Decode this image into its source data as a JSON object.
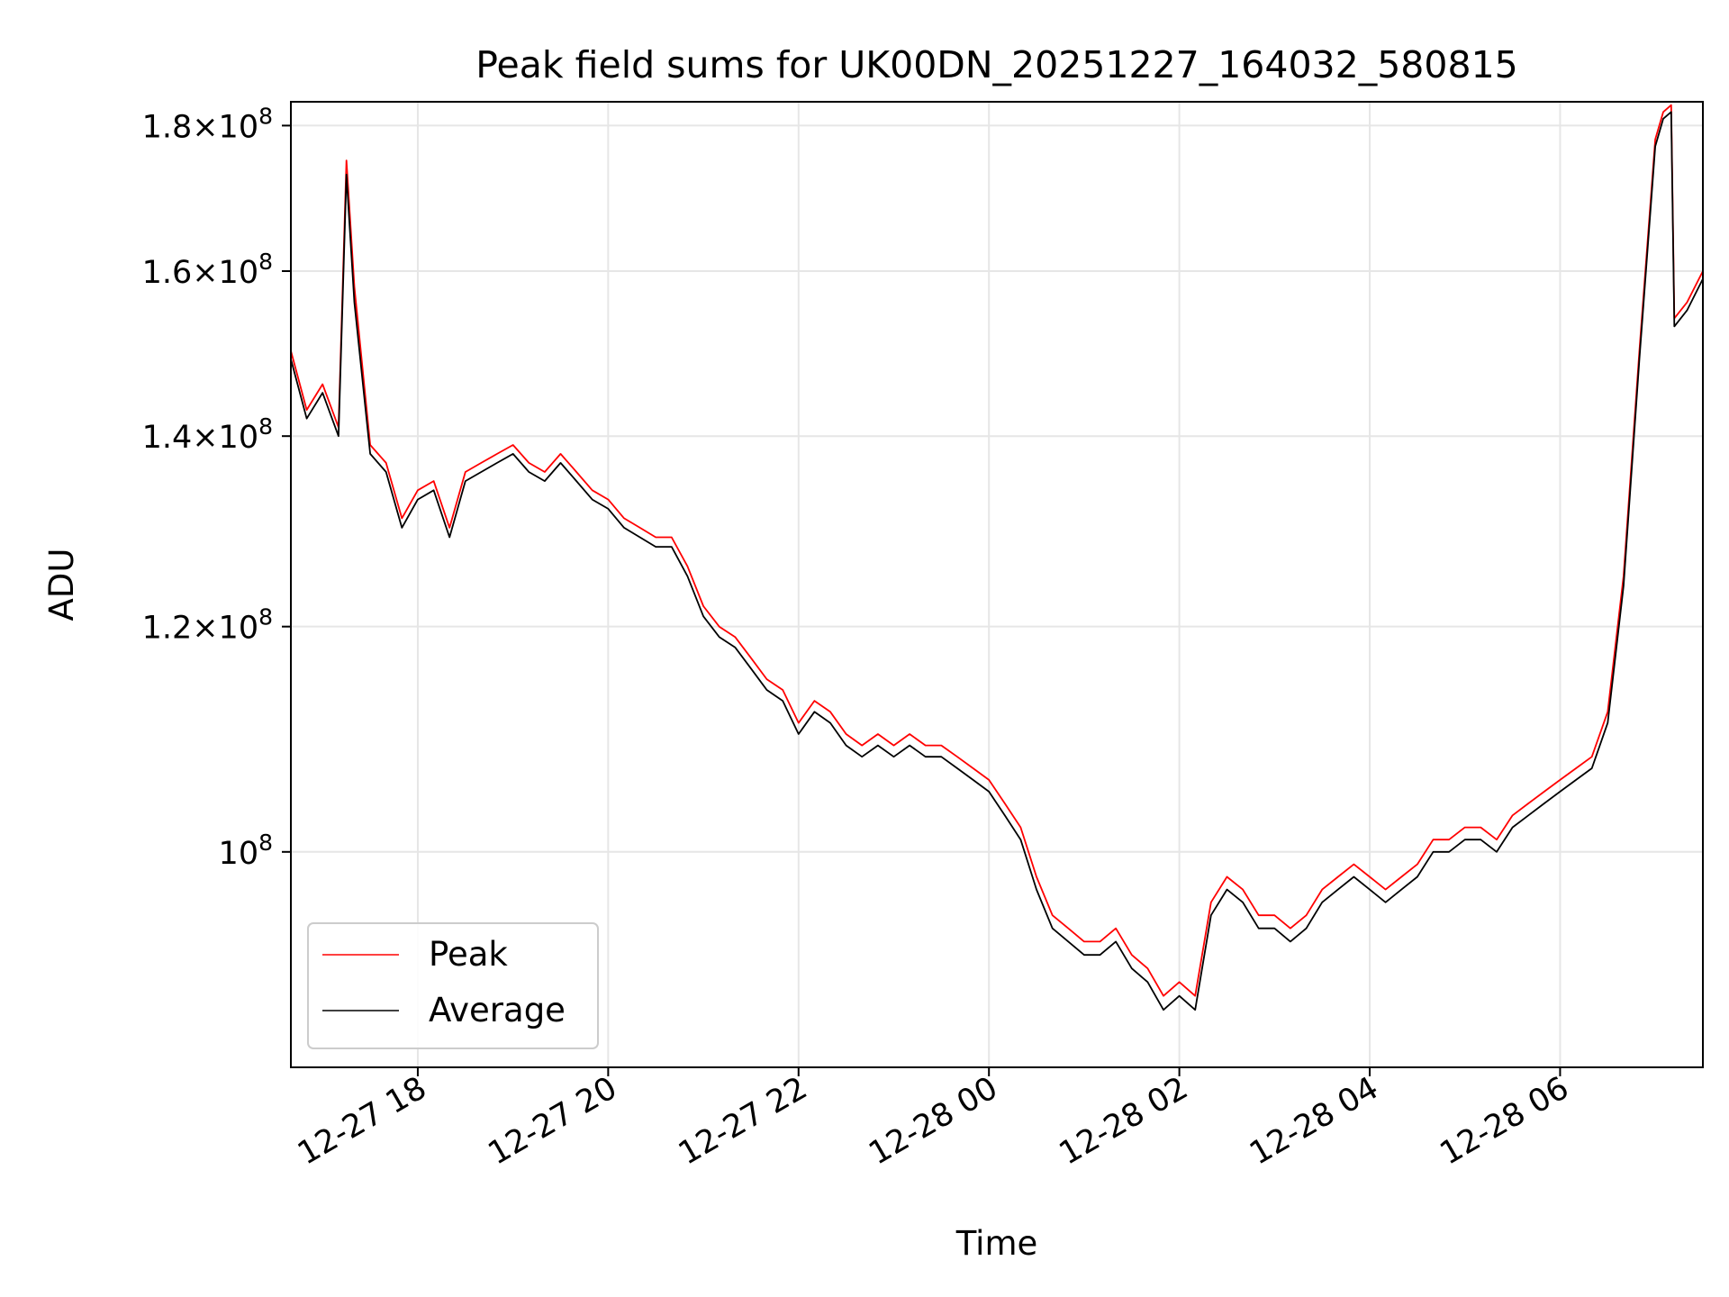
{
  "chart_data": {
    "type": "line",
    "title": "Peak field sums for UK00DN_20251227_164032_580815",
    "xlabel": "Time",
    "ylabel": "ADU",
    "yscale": "log",
    "ylim": [
      84000000,
      183500000
    ],
    "xlim": [
      "2025-12-27 16:40",
      "2025-12-28 07:30"
    ],
    "grid": true,
    "legend_position": "lower-left",
    "x_ticks": [
      {
        "value": "2025-12-27 18:00",
        "label": "12-27 18"
      },
      {
        "value": "2025-12-27 20:00",
        "label": "12-27 20"
      },
      {
        "value": "2025-12-27 22:00",
        "label": "12-27 22"
      },
      {
        "value": "2025-12-28 00:00",
        "label": "12-28 00"
      },
      {
        "value": "2025-12-28 02:00",
        "label": "12-28 02"
      },
      {
        "value": "2025-12-28 04:00",
        "label": "12-28 04"
      },
      {
        "value": "2025-12-28 06:00",
        "label": "12-28 06"
      }
    ],
    "y_ticks": [
      {
        "value": 100000000,
        "mantissa": "",
        "exponent": "8"
      },
      {
        "value": 120000000,
        "mantissa": "1.2",
        "exponent": "8"
      },
      {
        "value": 140000000,
        "mantissa": "1.4",
        "exponent": "8"
      },
      {
        "value": 160000000,
        "mantissa": "1.6",
        "exponent": "8"
      },
      {
        "value": 180000000,
        "mantissa": "1.8",
        "exponent": "8"
      }
    ],
    "series": [
      {
        "name": "Peak",
        "color": "#ff0000",
        "x": [
          "2025-12-27 16:40",
          "2025-12-27 16:50",
          "2025-12-27 17:00",
          "2025-12-27 17:10",
          "2025-12-27 17:15",
          "2025-12-27 17:20",
          "2025-12-27 17:30",
          "2025-12-27 17:40",
          "2025-12-27 17:50",
          "2025-12-27 18:00",
          "2025-12-27 18:10",
          "2025-12-27 18:20",
          "2025-12-27 18:30",
          "2025-12-27 18:40",
          "2025-12-27 18:50",
          "2025-12-27 19:00",
          "2025-12-27 19:10",
          "2025-12-27 19:20",
          "2025-12-27 19:30",
          "2025-12-27 19:40",
          "2025-12-27 19:50",
          "2025-12-27 20:00",
          "2025-12-27 20:10",
          "2025-12-27 20:20",
          "2025-12-27 20:30",
          "2025-12-27 20:40",
          "2025-12-27 20:50",
          "2025-12-27 21:00",
          "2025-12-27 21:10",
          "2025-12-27 21:20",
          "2025-12-27 21:30",
          "2025-12-27 21:40",
          "2025-12-27 21:50",
          "2025-12-27 22:00",
          "2025-12-27 22:10",
          "2025-12-27 22:20",
          "2025-12-27 22:30",
          "2025-12-27 22:40",
          "2025-12-27 22:50",
          "2025-12-27 23:00",
          "2025-12-27 23:10",
          "2025-12-27 23:20",
          "2025-12-27 23:30",
          "2025-12-27 23:40",
          "2025-12-27 23:50",
          "2025-12-28 00:00",
          "2025-12-28 00:10",
          "2025-12-28 00:20",
          "2025-12-28 00:30",
          "2025-12-28 00:40",
          "2025-12-28 00:50",
          "2025-12-28 01:00",
          "2025-12-28 01:10",
          "2025-12-28 01:20",
          "2025-12-28 01:30",
          "2025-12-28 01:40",
          "2025-12-28 01:50",
          "2025-12-28 02:00",
          "2025-12-28 02:10",
          "2025-12-28 02:20",
          "2025-12-28 02:30",
          "2025-12-28 02:40",
          "2025-12-28 02:50",
          "2025-12-28 03:00",
          "2025-12-28 03:10",
          "2025-12-28 03:20",
          "2025-12-28 03:30",
          "2025-12-28 03:40",
          "2025-12-28 03:50",
          "2025-12-28 04:00",
          "2025-12-28 04:10",
          "2025-12-28 04:20",
          "2025-12-28 04:30",
          "2025-12-28 04:40",
          "2025-12-28 04:50",
          "2025-12-28 05:00",
          "2025-12-28 05:10",
          "2025-12-28 05:20",
          "2025-12-28 05:30",
          "2025-12-28 05:40",
          "2025-12-28 05:50",
          "2025-12-28 06:00",
          "2025-12-28 06:10",
          "2025-12-28 06:20",
          "2025-12-28 06:30",
          "2025-12-28 06:40",
          "2025-12-28 06:50",
          "2025-12-28 07:00",
          "2025-12-28 07:05",
          "2025-12-28 07:10",
          "2025-12-28 07:12",
          "2025-12-28 07:20",
          "2025-12-28 07:30"
        ],
        "y": [
          150000000,
          143000000,
          146000000,
          141000000,
          175000000,
          158000000,
          139000000,
          137000000,
          131000000,
          134000000,
          135000000,
          130000000,
          136000000,
          137000000,
          138000000,
          139000000,
          137000000,
          136000000,
          138000000,
          136000000,
          134000000,
          133000000,
          131000000,
          130000000,
          129000000,
          129000000,
          126000000,
          122000000,
          120000000,
          119000000,
          117000000,
          115000000,
          114000000,
          111000000,
          113000000,
          112000000,
          110000000,
          109000000,
          110000000,
          109000000,
          110000000,
          109000000,
          109000000,
          108000000,
          107000000,
          106000000,
          104000000,
          102000000,
          98000000,
          95000000,
          94000000,
          93000000,
          93000000,
          94000000,
          92000000,
          91000000,
          89000000,
          90000000,
          89000000,
          96000000,
          98000000,
          97000000,
          95000000,
          95000000,
          94000000,
          95000000,
          97000000,
          98000000,
          99000000,
          98000000,
          97000000,
          98000000,
          99000000,
          101000000,
          101000000,
          102000000,
          102000000,
          101000000,
          103000000,
          104000000,
          105000000,
          106000000,
          107000000,
          108000000,
          112000000,
          125000000,
          150000000,
          178000000,
          182000000,
          183000000,
          154000000,
          156000000,
          160000000
        ]
      },
      {
        "name": "Average",
        "color": "#000000",
        "x": [
          "2025-12-27 16:40",
          "2025-12-27 16:50",
          "2025-12-27 17:00",
          "2025-12-27 17:10",
          "2025-12-27 17:15",
          "2025-12-27 17:20",
          "2025-12-27 17:30",
          "2025-12-27 17:40",
          "2025-12-27 17:50",
          "2025-12-27 18:00",
          "2025-12-27 18:10",
          "2025-12-27 18:20",
          "2025-12-27 18:30",
          "2025-12-27 18:40",
          "2025-12-27 18:50",
          "2025-12-27 19:00",
          "2025-12-27 19:10",
          "2025-12-27 19:20",
          "2025-12-27 19:30",
          "2025-12-27 19:40",
          "2025-12-27 19:50",
          "2025-12-27 20:00",
          "2025-12-27 20:10",
          "2025-12-27 20:20",
          "2025-12-27 20:30",
          "2025-12-27 20:40",
          "2025-12-27 20:50",
          "2025-12-27 21:00",
          "2025-12-27 21:10",
          "2025-12-27 21:20",
          "2025-12-27 21:30",
          "2025-12-27 21:40",
          "2025-12-27 21:50",
          "2025-12-27 22:00",
          "2025-12-27 22:10",
          "2025-12-27 22:20",
          "2025-12-27 22:30",
          "2025-12-27 22:40",
          "2025-12-27 22:50",
          "2025-12-27 23:00",
          "2025-12-27 23:10",
          "2025-12-27 23:20",
          "2025-12-27 23:30",
          "2025-12-27 23:40",
          "2025-12-27 23:50",
          "2025-12-28 00:00",
          "2025-12-28 00:10",
          "2025-12-28 00:20",
          "2025-12-28 00:30",
          "2025-12-28 00:40",
          "2025-12-28 00:50",
          "2025-12-28 01:00",
          "2025-12-28 01:10",
          "2025-12-28 01:20",
          "2025-12-28 01:30",
          "2025-12-28 01:40",
          "2025-12-28 01:50",
          "2025-12-28 02:00",
          "2025-12-28 02:10",
          "2025-12-28 02:20",
          "2025-12-28 02:30",
          "2025-12-28 02:40",
          "2025-12-28 02:50",
          "2025-12-28 03:00",
          "2025-12-28 03:10",
          "2025-12-28 03:20",
          "2025-12-28 03:30",
          "2025-12-28 03:40",
          "2025-12-28 03:50",
          "2025-12-28 04:00",
          "2025-12-28 04:10",
          "2025-12-28 04:20",
          "2025-12-28 04:30",
          "2025-12-28 04:40",
          "2025-12-28 04:50",
          "2025-12-28 05:00",
          "2025-12-28 05:10",
          "2025-12-28 05:20",
          "2025-12-28 05:30",
          "2025-12-28 05:40",
          "2025-12-28 05:50",
          "2025-12-28 06:00",
          "2025-12-28 06:10",
          "2025-12-28 06:20",
          "2025-12-28 06:30",
          "2025-12-28 06:40",
          "2025-12-28 06:50",
          "2025-12-28 07:00",
          "2025-12-28 07:05",
          "2025-12-28 07:10",
          "2025-12-28 07:12",
          "2025-12-28 07:20",
          "2025-12-28 07:30"
        ],
        "y": [
          149000000,
          142000000,
          145000000,
          140000000,
          173000000,
          156000000,
          138000000,
          136000000,
          130000000,
          133000000,
          134000000,
          129000000,
          135000000,
          136000000,
          137000000,
          138000000,
          136000000,
          135000000,
          137000000,
          135000000,
          133000000,
          132000000,
          130000000,
          129000000,
          128000000,
          128000000,
          125000000,
          121000000,
          119000000,
          118000000,
          116000000,
          114000000,
          113000000,
          110000000,
          112000000,
          111000000,
          109000000,
          108000000,
          109000000,
          108000000,
          109000000,
          108000000,
          108000000,
          107000000,
          106000000,
          105000000,
          103000000,
          101000000,
          97000000,
          94000000,
          93000000,
          92000000,
          92000000,
          93000000,
          91000000,
          90000000,
          88000000,
          89000000,
          88000000,
          95000000,
          97000000,
          96000000,
          94000000,
          94000000,
          93000000,
          94000000,
          96000000,
          97000000,
          98000000,
          97000000,
          96000000,
          97000000,
          98000000,
          100000000,
          100000000,
          101000000,
          101000000,
          100000000,
          102000000,
          103000000,
          104000000,
          105000000,
          106000000,
          107000000,
          111000000,
          124000000,
          149000000,
          177000000,
          181000000,
          182000000,
          153000000,
          155000000,
          159000000
        ]
      }
    ]
  }
}
